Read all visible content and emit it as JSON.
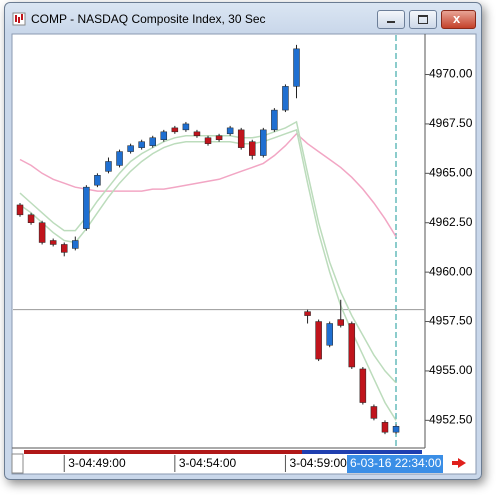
{
  "window_title": "COMP - NASDAQ Composite Index, 30 Sec",
  "chart_data": {
    "type": "candlestick",
    "categories": [
      null,
      null,
      null,
      null,
      "3-04:49:00",
      null,
      null,
      null,
      null,
      null,
      null,
      null,
      null,
      null,
      "3-04:54:00",
      null,
      null,
      null,
      null,
      null,
      null,
      null,
      null,
      null,
      "3-04:59:00",
      null,
      null,
      null,
      null,
      null,
      null,
      null,
      null,
      null,
      null
    ],
    "cursor_label": "6-03-16 22:34:00",
    "open": [
      4963.4,
      4962.9,
      4962.5,
      4961.6,
      4961.4,
      4961.2,
      4962.2,
      4964.4,
      4965.1,
      4965.4,
      4966.1,
      4966.3,
      4966.4,
      4966.7,
      4967.3,
      4967.2,
      4967.1,
      4966.8,
      4966.9,
      4967.0,
      4967.2,
      4966.6,
      4965.9,
      4967.2,
      4968.2,
      4969.4,
      4958.0,
      4957.5,
      4956.3,
      4957.6,
      4957.4,
      4955.1,
      4953.2,
      4952.4,
      4951.9
    ],
    "high": [
      4963.5,
      4963.0,
      4962.6,
      4961.7,
      4961.5,
      4961.8,
      4964.4,
      4965.0,
      4965.8,
      4966.2,
      4966.5,
      4966.7,
      4966.9,
      4967.2,
      4967.4,
      4967.6,
      4967.2,
      4966.9,
      4967.0,
      4967.4,
      4967.3,
      4966.7,
      4967.3,
      4968.3,
      4969.5,
      4971.5,
      4958.1,
      4957.6,
      4957.5,
      4958.6,
      4957.5,
      4955.2,
      4953.3,
      4952.5,
      4952.3
    ],
    "low": [
      4962.8,
      4962.4,
      4961.4,
      4961.3,
      4960.8,
      4961.1,
      4962.1,
      4964.3,
      4965.0,
      4965.3,
      4966.0,
      4966.2,
      4966.3,
      4966.6,
      4967.0,
      4967.1,
      4966.8,
      4966.4,
      4966.6,
      4966.9,
      4966.2,
      4965.7,
      4965.8,
      4967.1,
      4968.1,
      4968.8,
      4957.4,
      4955.5,
      4956.2,
      4957.2,
      4955.1,
      4953.3,
      4952.5,
      4951.8,
      4951.8
    ],
    "close": [
      4962.9,
      4962.5,
      4961.5,
      4961.4,
      4961.0,
      4961.6,
      4964.3,
      4964.9,
      4965.6,
      4966.1,
      4966.4,
      4966.6,
      4966.8,
      4967.1,
      4967.1,
      4967.5,
      4966.9,
      4966.5,
      4966.7,
      4967.3,
      4966.3,
      4965.9,
      4967.2,
      4968.2,
      4969.4,
      4971.3,
      4957.8,
      4955.6,
      4957.4,
      4957.3,
      4955.2,
      4953.4,
      4952.6,
      4951.9,
      4952.2
    ],
    "up_color": "#1f6fd1",
    "down_color": "#c0141c",
    "lines": [
      {
        "color": "#f2a6c4",
        "values": [
          4965.7,
          4965.4,
          4965.0,
          4964.7,
          4964.5,
          4964.3,
          4964.2,
          4964.1,
          4964.1,
          4964.1,
          4964.1,
          4964.1,
          4964.2,
          4964.2,
          4964.3,
          4964.4,
          4964.5,
          4964.6,
          4964.7,
          4964.9,
          4965.1,
          4965.3,
          4965.5,
          4965.9,
          4966.4,
          4967.0,
          4966.5,
          4966.1,
          4965.7,
          4965.3,
          4964.8,
          4964.2,
          4963.5,
          4962.7,
          4961.8
        ]
      },
      {
        "color": "#bcdcbc",
        "values": [
          4964.0,
          4963.5,
          4963.0,
          4962.5,
          4962.1,
          4962.1,
          4962.8,
          4963.6,
          4964.3,
          4965.0,
          4965.6,
          4966.0,
          4966.3,
          4966.6,
          4966.8,
          4966.9,
          4966.9,
          4966.9,
          4966.9,
          4966.9,
          4966.8,
          4966.8,
          4966.9,
          4967.1,
          4967.3,
          4967.6,
          4965.0,
          4962.5,
          4960.5,
          4959.0,
          4957.8,
          4956.8,
          4955.8,
          4955.0,
          4954.4
        ]
      },
      {
        "color": "#bcdcbc",
        "values": [
          4963.4,
          4963.0,
          4962.5,
          4962.0,
          4961.6,
          4961.5,
          4962.2,
          4963.0,
          4963.8,
          4964.5,
          4965.1,
          4965.6,
          4966.0,
          4966.3,
          4966.5,
          4966.6,
          4966.6,
          4966.6,
          4966.6,
          4966.6,
          4966.5,
          4966.5,
          4966.6,
          4966.8,
          4967.0,
          4967.2,
          4964.5,
          4962.0,
          4960.0,
          4958.3,
          4957.0,
          4955.8,
          4954.6,
          4953.4,
          4952.5
        ]
      }
    ],
    "hline": 4958.1,
    "ylim": [
      4951.1,
      4972
    ],
    "yticks": [
      {
        "value": 4952.5,
        "label": "4952.50"
      },
      {
        "value": 4955,
        "label": "4955.00"
      },
      {
        "value": 4957.5,
        "label": "4957.50"
      },
      {
        "value": 4960,
        "label": "4960.00"
      },
      {
        "value": 4962.5,
        "label": "4962.50"
      },
      {
        "value": 4965,
        "label": "4965.00"
      },
      {
        "value": 4967.5,
        "label": "4967.50"
      },
      {
        "value": 4970,
        "label": "4970.00"
      }
    ]
  }
}
